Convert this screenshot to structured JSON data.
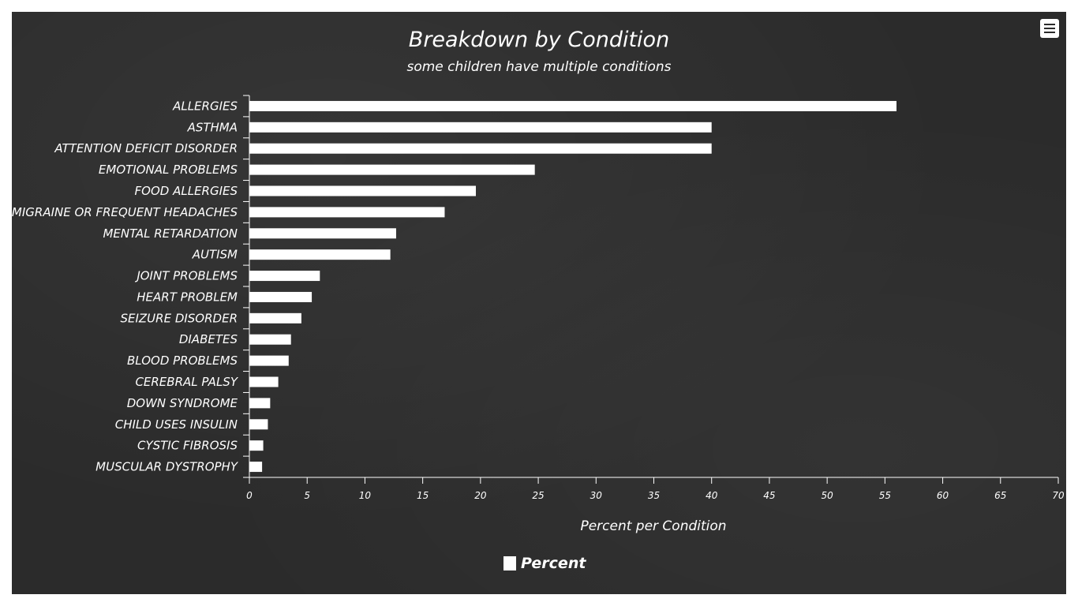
{
  "chart_data": {
    "type": "bar",
    "orientation": "horizontal",
    "title": "Breakdown by Condition",
    "subtitle": "some children have multiple conditions",
    "categories": [
      "ALLERGIES",
      "ASTHMA",
      "ATTENTION DEFICIT DISORDER",
      "EMOTIONAL PROBLEMS",
      "FOOD ALLERGIES",
      "MIGRAINE OR FREQUENT HEADACHES",
      "MENTAL RETARDATION",
      "AUTISM",
      "JOINT PROBLEMS",
      "HEART PROBLEM",
      "SEIZURE DISORDER",
      "DIABETES",
      "BLOOD PROBLEMS",
      "CEREBRAL PALSY",
      "DOWN SYNDROME",
      "CHILD USES INSULIN",
      "CYSTIC FIBROSIS",
      "MUSCULAR DYSTROPHY"
    ],
    "series": [
      {
        "name": "Percent",
        "values": [
          56,
          40,
          40,
          24.7,
          19.6,
          16.9,
          12.7,
          12.2,
          6.1,
          5.4,
          4.5,
          3.6,
          3.4,
          2.5,
          1.8,
          1.6,
          1.2,
          1.1
        ]
      }
    ],
    "xlabel": "Percent per Condition",
    "ylabel": "",
    "xlim": [
      0,
      70
    ],
    "x_ticks": [
      0,
      5,
      10,
      15,
      20,
      25,
      30,
      35,
      40,
      45,
      50,
      55,
      60,
      65,
      70
    ],
    "grid": false,
    "legend": "bottom-center"
  },
  "colors": {
    "background": "#2b2b2b",
    "bar": "#ffffff",
    "text": "#ffffff"
  },
  "toolbar": {
    "menu_icon": "hamburger-menu-icon"
  }
}
